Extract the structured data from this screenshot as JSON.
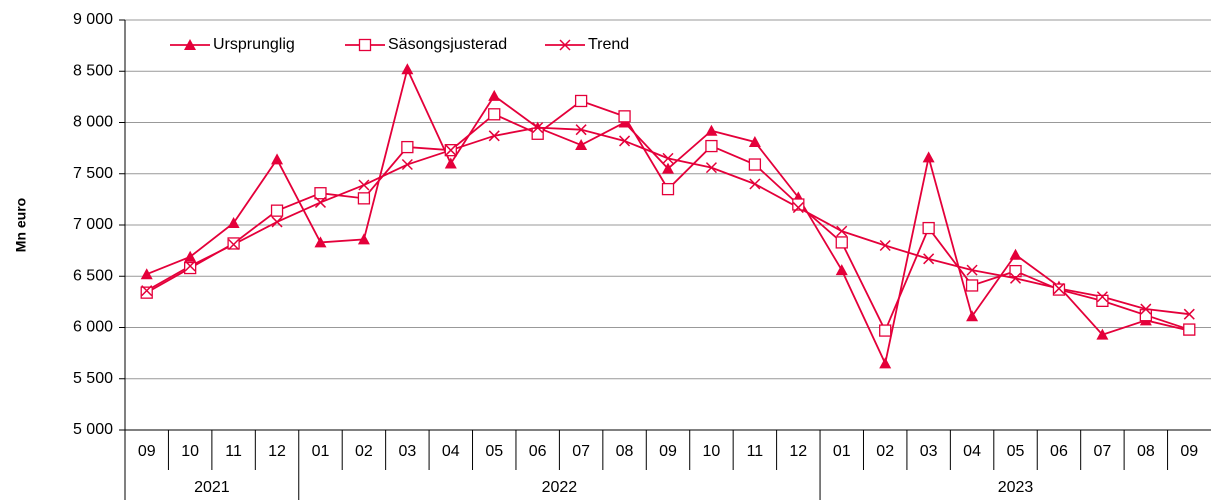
{
  "chart_data": {
    "type": "line",
    "y_label": "Mn euro",
    "categories": [
      "09",
      "10",
      "11",
      "12",
      "01",
      "02",
      "03",
      "04",
      "05",
      "06",
      "07",
      "08",
      "09",
      "10",
      "11",
      "12",
      "01",
      "02",
      "03",
      "04",
      "05",
      "06",
      "07",
      "08",
      "09"
    ],
    "years": [
      "2021",
      "2022",
      "2023"
    ],
    "series": [
      {
        "name": "Ursprunglig",
        "color": "#e4003a",
        "marker": "triangle",
        "values": [
          6520,
          6690,
          7020,
          7640,
          6830,
          6860,
          8520,
          7600,
          8260,
          7950,
          7780,
          8000,
          7550,
          7920,
          7810,
          7270,
          6560,
          5650,
          7660,
          6110,
          6710,
          6400,
          5930,
          6070,
          5970
        ]
      },
      {
        "name": "Säsongsjusterad",
        "color": "#e4003a",
        "marker": "square",
        "values": [
          6340,
          6580,
          6820,
          7140,
          7310,
          7260,
          7760,
          7730,
          8080,
          7890,
          8210,
          8060,
          7350,
          7770,
          7590,
          7200,
          6830,
          5970,
          6970,
          6410,
          6550,
          6370,
          6260,
          6120,
          5980
        ]
      },
      {
        "name": "Trend",
        "color": "#e4003a",
        "marker": "x",
        "values": [
          6360,
          6600,
          6810,
          7030,
          7220,
          7390,
          7590,
          7730,
          7870,
          7950,
          7930,
          7820,
          7650,
          7560,
          7400,
          7170,
          6940,
          6800,
          6670,
          6560,
          6480,
          6380,
          6300,
          6180,
          6130
        ]
      }
    ],
    "ylim": [
      5000,
      9000
    ],
    "yticks": [
      {
        "value": 5000,
        "label": "5 000"
      },
      {
        "value": 5500,
        "label": "5 500"
      },
      {
        "value": 6000,
        "label": "6 000"
      },
      {
        "value": 6500,
        "label": "6 500"
      },
      {
        "value": 7000,
        "label": "7 000"
      },
      {
        "value": 7500,
        "label": "7 500"
      },
      {
        "value": 8000,
        "label": "8 000"
      },
      {
        "value": 8500,
        "label": "8 500"
      },
      {
        "value": 9000,
        "label": "9 000"
      }
    ],
    "grid": true,
    "legend": "top-left"
  }
}
